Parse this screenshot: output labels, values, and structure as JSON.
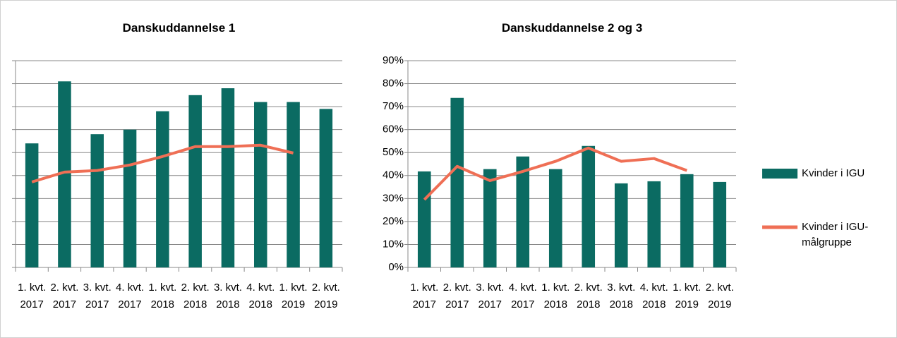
{
  "chart_data": [
    {
      "type": "bar",
      "title": "Danskuddannelse 1",
      "categories": [
        "1. kvt. 2017",
        "2. kvt. 2017",
        "3. kvt. 2017",
        "4. kvt. 2017",
        "1. kvt. 2018",
        "2. kvt. 2018",
        "3. kvt. 2018",
        "4. kvt. 2018",
        "1. kvt. 2019",
        "2. kvt. 2019"
      ],
      "series": [
        {
          "name": "Kvinder i IGU",
          "type": "bar",
          "color": "#0b6b62",
          "values": [
            54,
            81,
            58,
            60,
            68,
            75,
            78,
            72,
            72,
            69
          ]
        },
        {
          "name": "Kvinder i IGU-målgruppe",
          "type": "line",
          "color": "#ef6f55",
          "values": [
            37.2,
            41.5,
            42.2,
            44.6,
            48.3,
            52.6,
            52.6,
            53.2,
            49.8,
            null
          ]
        }
      ],
      "ylim": [
        0,
        90
      ],
      "yticks": [
        0,
        10,
        20,
        30,
        40,
        50,
        60,
        70,
        80,
        90
      ],
      "tick_labels": false,
      "grid": true
    },
    {
      "type": "bar",
      "title": "Danskuddannelse 2 og 3",
      "categories": [
        "1. kvt. 2017",
        "2. kvt. 2017",
        "3. kvt. 2017",
        "4. kvt. 2017",
        "1. kvt. 2018",
        "2. kvt. 2018",
        "3. kvt. 2018",
        "4. kvt. 2018",
        "1. kvt. 2019",
        "2. kvt. 2019"
      ],
      "series": [
        {
          "type": "bar",
          "color": "#0b6b62",
          "values": [
            41.8,
            73.8,
            42.8,
            48.3,
            42.8,
            52.9,
            36.6,
            37.5,
            40.6,
            37.2
          ]
        },
        {
          "type": "line",
          "color": "#ef6f55",
          "values": [
            29.5,
            44,
            37.8,
            41.8,
            46.2,
            52,
            46.2,
            47.4,
            42.2,
            null
          ]
        }
      ],
      "ylim": [
        0,
        90
      ],
      "yticks": [
        {
          "value": 0,
          "label": "0%"
        },
        {
          "value": 10,
          "label": "10%"
        },
        {
          "value": 20,
          "label": "20%"
        },
        {
          "value": 30,
          "label": "30%"
        },
        {
          "value": 40,
          "label": "40%"
        },
        {
          "value": 50,
          "label": "50%"
        },
        {
          "value": 60,
          "label": "60%"
        },
        {
          "value": 70,
          "label": "70%"
        },
        {
          "value": 80,
          "label": "80%"
        },
        {
          "value": 90,
          "label": "90%"
        }
      ],
      "tick_labels": true,
      "grid": true
    }
  ]
}
